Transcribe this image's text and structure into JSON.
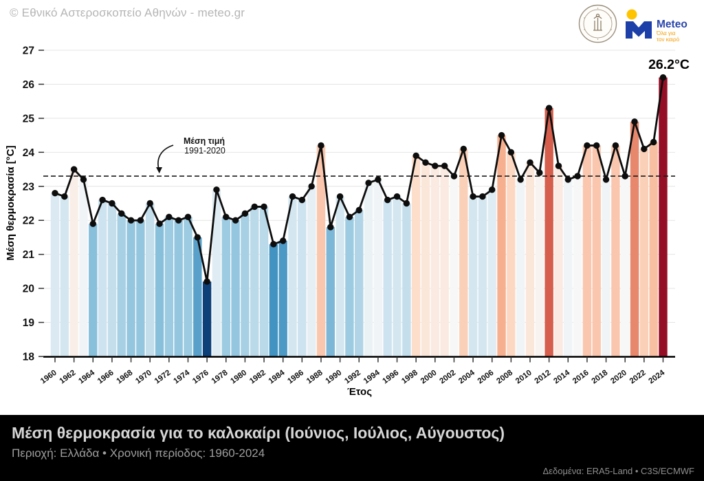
{
  "header": {
    "copyright": "© Εθνικό Αστεροσκοπείο Αθηνών - meteo.gr",
    "logo": {
      "brand": "Meteo",
      "tagline_line1": "Όλα για",
      "tagline_line2": "τον καιρό",
      "brand_color": "#2946ab",
      "tagline_color": "#f59b00",
      "dot_color": "#ffc400",
      "m_color": "#1c3fa8"
    }
  },
  "chart_data": {
    "type": "bar",
    "title": "Μέση θερμοκρασία για το καλοκαίρι (Ιούνιος, Ιούλιος, Αύγουστος)",
    "xlabel": "Έτος",
    "ylabel": "Μέση θερμοκρασία [°C]",
    "ylim": [
      18,
      27
    ],
    "y_ticks": [
      18,
      19,
      20,
      21,
      22,
      23,
      24,
      25,
      26,
      27
    ],
    "x_tick_start": 1960,
    "x_tick_end": 2024,
    "x_tick_step": 2,
    "grid": true,
    "years": [
      1960,
      1961,
      1962,
      1963,
      1964,
      1965,
      1966,
      1967,
      1968,
      1969,
      1970,
      1971,
      1972,
      1973,
      1974,
      1975,
      1976,
      1977,
      1978,
      1979,
      1980,
      1981,
      1982,
      1983,
      1984,
      1985,
      1986,
      1987,
      1988,
      1989,
      1990,
      1991,
      1992,
      1993,
      1994,
      1995,
      1996,
      1997,
      1998,
      1999,
      2000,
      2001,
      2002,
      2003,
      2004,
      2005,
      2006,
      2007,
      2008,
      2009,
      2010,
      2011,
      2012,
      2013,
      2014,
      2015,
      2016,
      2017,
      2018,
      2019,
      2020,
      2021,
      2022,
      2023,
      2024
    ],
    "values": [
      22.8,
      22.7,
      23.5,
      23.2,
      21.9,
      22.6,
      22.5,
      22.2,
      22.0,
      22.0,
      22.5,
      21.9,
      22.1,
      22.0,
      22.1,
      21.5,
      20.2,
      22.9,
      22.1,
      22.0,
      22.2,
      22.4,
      22.4,
      21.3,
      21.4,
      22.7,
      22.6,
      23.0,
      24.2,
      21.8,
      22.7,
      22.1,
      22.3,
      23.1,
      23.2,
      22.6,
      22.7,
      22.5,
      23.9,
      23.7,
      23.6,
      23.6,
      23.3,
      24.1,
      22.7,
      22.7,
      22.9,
      24.5,
      24.0,
      23.2,
      23.7,
      23.4,
      25.3,
      23.6,
      23.2,
      23.3,
      24.2,
      24.2,
      23.2,
      24.2,
      23.3,
      24.9,
      24.1,
      24.3,
      26.2
    ],
    "mean_line": {
      "value": 23.3,
      "label_bold": "Μέση τιμή",
      "label_regular": "1991-2020"
    },
    "peak_label": "26.2°C",
    "legend_position": "none",
    "colors": {
      "line": "#0d0d0d",
      "marker": "#0d0d0d",
      "grid": "#e4e4e4",
      "axis": "#000000",
      "mean_line": "#1a1a1a",
      "diverging_palette": [
        "#053061",
        "#2166ac",
        "#4393c3",
        "#92c5de",
        "#d1e5f0",
        "#f7f7f7",
        "#fddbc7",
        "#f4a582",
        "#d6604d",
        "#b2182b",
        "#67001f"
      ],
      "anomaly_center": 23.3,
      "anomaly_halfrange": 3.3
    }
  },
  "footer": {
    "title": "Μέση θερμοκρασία για το καλοκαίρι (Ιούνιος, Ιούλιος, Αύγουστος)",
    "subtitle": "Περιοχή: Ελλάδα • Χρονική περίοδος: 1960-2024",
    "credit": "Δεδομένα: ERA5-Land • C3S/ECMWF"
  }
}
